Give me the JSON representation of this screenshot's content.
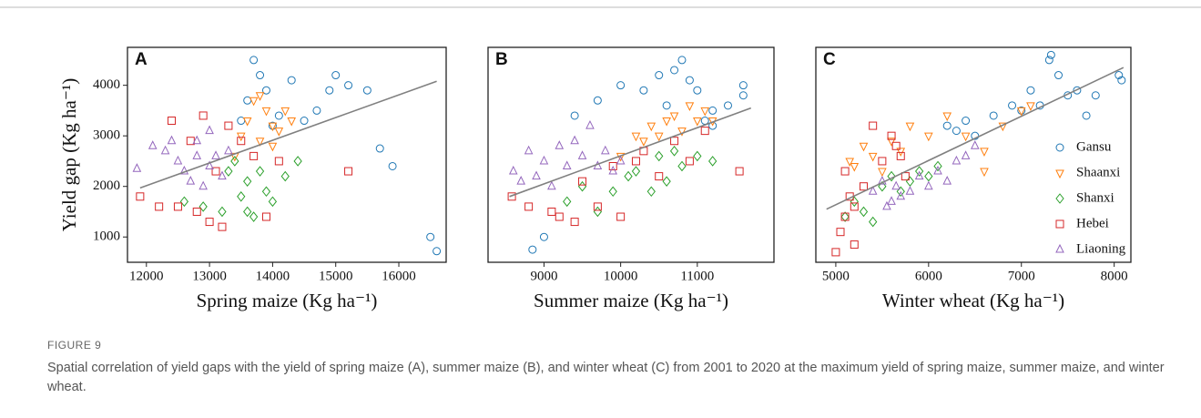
{
  "chart_data": [
    {
      "type": "scatter",
      "panel": "A",
      "xlabel": "Spring maize (Kg ha⁻¹)",
      "ylabel": "Yield gap (Kg ha⁻¹)",
      "xlim": [
        11700,
        16750
      ],
      "ylim": [
        500,
        4750
      ],
      "xticks": [
        12000,
        13000,
        14000,
        15000,
        16000
      ],
      "yticks": [
        1000,
        2000,
        3000,
        4000
      ],
      "trend": {
        "x": [
          11900,
          16600
        ],
        "y": [
          1970,
          4080
        ],
        "color": "#808080"
      },
      "series": [
        {
          "name": "Gansu",
          "color": "#1f77b4",
          "marker": "circle",
          "x": [
            13600,
            13700,
            13800,
            13900,
            14100,
            14300,
            14500,
            14700,
            14900,
            15000,
            15200,
            15500,
            15700,
            15900,
            16500,
            16600,
            13500,
            14000
          ],
          "values": [
            3700,
            4500,
            4200,
            3900,
            3400,
            4100,
            3300,
            3500,
            3900,
            4200,
            4000,
            3900,
            2750,
            2400,
            1000,
            720,
            3300,
            3200
          ]
        },
        {
          "name": "Shaanxi",
          "color": "#ff7f0e",
          "marker": "triangle-down",
          "x": [
            13500,
            13600,
            13700,
            13800,
            13900,
            14000,
            14100,
            14200,
            14300,
            13400,
            13800,
            14000
          ],
          "values": [
            3000,
            3300,
            3700,
            2900,
            3500,
            3200,
            3100,
            3500,
            3300,
            2600,
            3800,
            2800
          ]
        },
        {
          "name": "Shanxi",
          "color": "#2ca02c",
          "marker": "diamond",
          "x": [
            12600,
            12900,
            13200,
            13400,
            13500,
            13600,
            13700,
            13800,
            13900,
            14000,
            14200,
            14400,
            13300,
            13600
          ],
          "values": [
            1700,
            1600,
            1500,
            2500,
            1800,
            2100,
            1400,
            2300,
            1900,
            1700,
            2200,
            2500,
            2300,
            1500
          ]
        },
        {
          "name": "Hebei",
          "color": "#d62728",
          "marker": "square",
          "x": [
            11900,
            12200,
            12400,
            12500,
            12700,
            12800,
            12900,
            13000,
            13100,
            13200,
            13300,
            13500,
            13700,
            13900,
            14100,
            15200
          ],
          "values": [
            1800,
            1600,
            3300,
            1600,
            2900,
            1500,
            3400,
            1300,
            2300,
            1200,
            3200,
            2900,
            2600,
            1400,
            2500,
            2300
          ]
        },
        {
          "name": "Liaoning",
          "color": "#9467bd",
          "marker": "triangle",
          "x": [
            11850,
            12100,
            12300,
            12500,
            12600,
            12700,
            12800,
            12900,
            13000,
            13000,
            13100,
            13200,
            12400,
            12800,
            13300
          ],
          "values": [
            2350,
            2800,
            2700,
            2500,
            2300,
            2100,
            2900,
            2000,
            3100,
            2400,
            2600,
            2200,
            2900,
            2600,
            2700
          ]
        }
      ]
    },
    {
      "type": "scatter",
      "panel": "B",
      "xlabel": "Summer maize (Kg ha⁻¹)",
      "xlim": [
        8270,
        12000
      ],
      "ylim": [
        500,
        4750
      ],
      "xticks": [
        9000,
        10000,
        11000
      ],
      "trend": {
        "x": [
          8550,
          11700
        ],
        "y": [
          1800,
          3550
        ],
        "color": "#808080"
      },
      "series": [
        {
          "name": "Gansu",
          "color": "#1f77b4",
          "marker": "circle",
          "x": [
            8850,
            9000,
            9400,
            9700,
            10000,
            10300,
            10500,
            10600,
            10700,
            10800,
            10900,
            11000,
            11100,
            11200,
            11400,
            11600,
            11600,
            11200
          ],
          "values": [
            750,
            1000,
            3400,
            3700,
            4000,
            3900,
            4200,
            3600,
            4300,
            4500,
            4100,
            3900,
            3300,
            3200,
            3600,
            4000,
            3800,
            3500
          ]
        },
        {
          "name": "Shaanxi",
          "color": "#ff7f0e",
          "marker": "triangle-down",
          "x": [
            10000,
            10200,
            10400,
            10500,
            10600,
            10700,
            10800,
            10900,
            11000,
            11100,
            11200,
            10300
          ],
          "values": [
            2600,
            3000,
            3200,
            3000,
            3300,
            3400,
            3100,
            3600,
            3300,
            3500,
            3300,
            2900
          ]
        },
        {
          "name": "Shanxi",
          "color": "#2ca02c",
          "marker": "diamond",
          "x": [
            9300,
            9500,
            9700,
            9900,
            10100,
            10200,
            10400,
            10500,
            10600,
            10700,
            10800,
            11000,
            11200
          ],
          "values": [
            1700,
            2000,
            1500,
            1900,
            2200,
            2300,
            1900,
            2600,
            2100,
            2700,
            2400,
            2600,
            2500
          ]
        },
        {
          "name": "Hebei",
          "color": "#d62728",
          "marker": "square",
          "x": [
            8580,
            8800,
            9100,
            9200,
            9400,
            9500,
            9700,
            9900,
            10000,
            10200,
            10300,
            10500,
            10700,
            10900,
            11100,
            11550
          ],
          "values": [
            1800,
            1600,
            1500,
            1400,
            1300,
            2100,
            1600,
            2400,
            1400,
            2500,
            2700,
            2200,
            2900,
            2500,
            3100,
            2300
          ]
        },
        {
          "name": "Liaoning",
          "color": "#9467bd",
          "marker": "triangle",
          "x": [
            8600,
            8700,
            8800,
            8900,
            9000,
            9100,
            9200,
            9300,
            9400,
            9500,
            9600,
            9700,
            9800,
            9900,
            10000
          ],
          "values": [
            2300,
            2100,
            2700,
            2200,
            2500,
            2000,
            2800,
            2400,
            2900,
            2600,
            3200,
            2400,
            2700,
            2300,
            2500
          ]
        }
      ]
    },
    {
      "type": "scatter",
      "panel": "C",
      "xlabel": "Winter wheat (Kg ha⁻¹)",
      "xlim": [
        4785,
        8180
      ],
      "ylim": [
        500,
        4750
      ],
      "xticks": [
        5000,
        6000,
        7000,
        8000
      ],
      "legend": "lower right",
      "trend": {
        "x": [
          4900,
          8100
        ],
        "y": [
          1550,
          4350
        ],
        "color": "#808080"
      },
      "series": [
        {
          "name": "Gansu",
          "color": "#1f77b4",
          "marker": "circle",
          "x": [
            6200,
            6300,
            6400,
            6500,
            6700,
            6900,
            7000,
            7100,
            7200,
            7300,
            7320,
            7400,
            7500,
            7600,
            7700,
            7800,
            8050,
            8080
          ],
          "values": [
            3200,
            3100,
            3300,
            3000,
            3400,
            3600,
            3500,
            3900,
            3600,
            4500,
            4600,
            4200,
            3800,
            3900,
            3400,
            3800,
            4200,
            4100
          ]
        },
        {
          "name": "Shaanxi",
          "color": "#ff7f0e",
          "marker": "triangle-down",
          "x": [
            5150,
            5200,
            5300,
            5400,
            5500,
            5600,
            5800,
            6000,
            6200,
            6400,
            6600,
            6800,
            7000,
            7100,
            5700,
            6600
          ],
          "values": [
            2500,
            2400,
            2800,
            2600,
            2300,
            2900,
            3200,
            3000,
            3400,
            3000,
            2700,
            3200,
            3500,
            3600,
            2700,
            2300
          ]
        },
        {
          "name": "Shanxi",
          "color": "#2ca02c",
          "marker": "diamond",
          "x": [
            5100,
            5200,
            5300,
            5400,
            5500,
            5600,
            5700,
            5800,
            5900,
            6000,
            6100
          ],
          "values": [
            1400,
            1700,
            1500,
            1300,
            2000,
            2200,
            1900,
            2100,
            2300,
            2200,
            2400
          ]
        },
        {
          "name": "Hebei",
          "color": "#d62728",
          "marker": "square",
          "x": [
            5000,
            5050,
            5100,
            5150,
            5200,
            5300,
            5400,
            5500,
            5600,
            5650,
            5700,
            5750,
            5200,
            5100
          ],
          "values": [
            700,
            1100,
            1400,
            1800,
            1600,
            2000,
            3200,
            2500,
            3000,
            2800,
            2600,
            2200,
            850,
            2300
          ]
        },
        {
          "name": "Liaoning",
          "color": "#9467bd",
          "marker": "triangle",
          "x": [
            5400,
            5500,
            5600,
            5650,
            5700,
            5800,
            5900,
            6000,
            6100,
            6200,
            6300,
            6400,
            6500,
            5550
          ],
          "values": [
            1900,
            2100,
            1700,
            2000,
            1800,
            1900,
            2200,
            2000,
            2300,
            2100,
            2500,
            2600,
            2800,
            1600
          ]
        }
      ]
    }
  ],
  "figure": {
    "label": "FIGURE 9",
    "caption": "Spatial correlation of yield gaps with the yield of spring maize (A), summer maize (B), and winter wheat (C) from 2001 to 2020 at the maximum yield of spring maize, summer maize, and winter wheat."
  }
}
